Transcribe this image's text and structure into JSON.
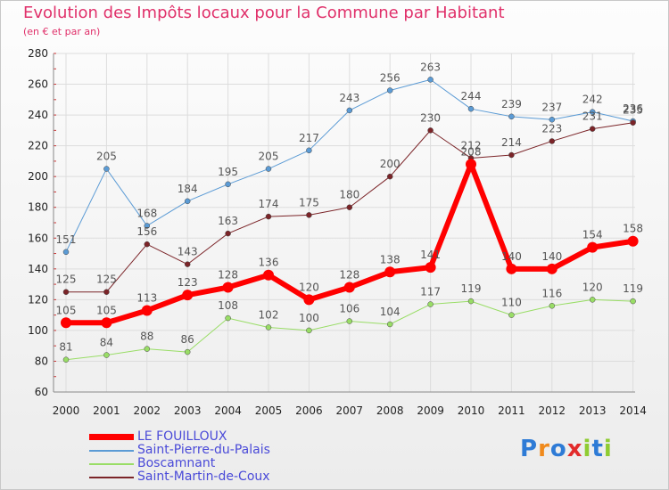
{
  "title": "Evolution des Impôts locaux pour la Commune par Habitant",
  "subtitle": "(en € et par an)",
  "logo_text": "Proxiti",
  "chart_data": {
    "type": "line",
    "title": "Evolution des Impôts locaux pour la Commune par Habitant",
    "subtitle": "(en € et par an)",
    "xlabel": "",
    "ylabel": "",
    "ylim": [
      60,
      280
    ],
    "yticks": [
      60,
      80,
      100,
      120,
      140,
      160,
      180,
      200,
      220,
      240,
      260,
      280
    ],
    "x": [
      "2000",
      "2001",
      "2002",
      "2003",
      "2004",
      "2005",
      "2006",
      "2007",
      "2008",
      "2009",
      "2010",
      "2011",
      "2012",
      "2013",
      "2014"
    ],
    "grid": true,
    "legend_position": "bottom-left",
    "series": [
      {
        "name": "Saint-Pierre-du-Palais",
        "color": "#5b9bd5",
        "width": 1,
        "values": [
          151,
          205,
          168,
          184,
          195,
          205,
          217,
          243,
          256,
          263,
          244,
          239,
          237,
          242,
          236
        ],
        "labels": [
          "151",
          "205",
          "168",
          "184",
          "195",
          "205",
          "217",
          "243",
          "256",
          "263",
          "244",
          "239",
          "237",
          "242",
          "236"
        ]
      },
      {
        "name": "Saint-Martin-de-Coux",
        "color": "#7b2428",
        "width": 1,
        "values": [
          125,
          125,
          156,
          143,
          163,
          174,
          175,
          180,
          200,
          230,
          212,
          214,
          223,
          231,
          235
        ],
        "labels": [
          "125",
          "125",
          "156",
          "143",
          "163",
          "174",
          "175",
          "180",
          "200",
          "230",
          "212",
          "214",
          "223",
          "231",
          "235"
        ]
      },
      {
        "name": "Boscamnant",
        "color": "#99dd66",
        "width": 1,
        "values": [
          81,
          84,
          88,
          86,
          108,
          102,
          100,
          106,
          104,
          117,
          119,
          110,
          116,
          120,
          119
        ],
        "labels": [
          "81",
          "84",
          "88",
          "86",
          "108",
          "102",
          "100",
          "106",
          "104",
          "117",
          "119",
          "110",
          "116",
          "120",
          "119"
        ]
      },
      {
        "name": "LE FOUILLOUX",
        "color": "#ff0000",
        "width": 6,
        "values": [
          105,
          105,
          113,
          123,
          128,
          136,
          120,
          128,
          138,
          141,
          208,
          140,
          140,
          154,
          158
        ],
        "labels": [
          "105",
          "105",
          "113",
          "123",
          "128",
          "136",
          "120",
          "128",
          "138",
          "141",
          "208",
          "140",
          "140",
          "154",
          "158"
        ]
      }
    ],
    "legend_order": [
      "LE FOUILLOUX",
      "Saint-Pierre-du-Palais",
      "Boscamnant",
      "Saint-Martin-de-Coux"
    ]
  }
}
